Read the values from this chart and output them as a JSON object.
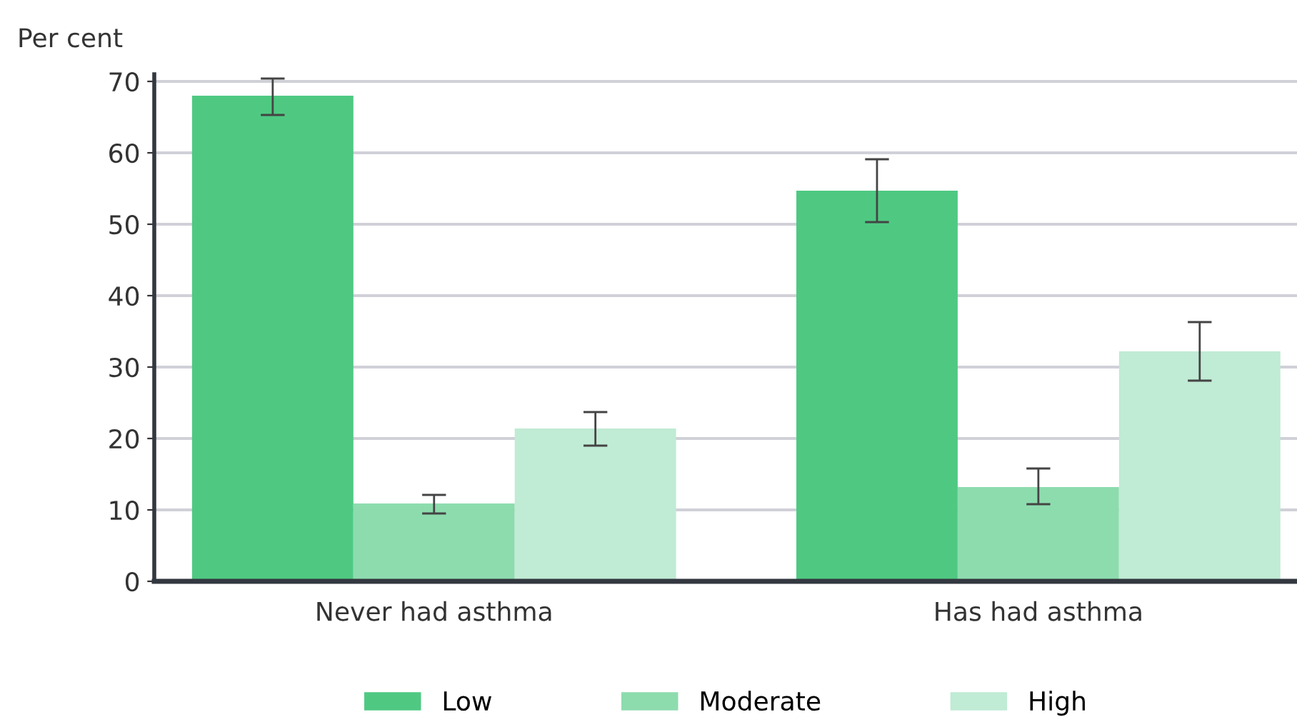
{
  "chart_data": {
    "type": "bar",
    "ylabel": "Per cent",
    "categories": [
      "Never had asthma",
      "Has had asthma"
    ],
    "series": [
      {
        "name": "Low",
        "color": "#4fc982",
        "values": [
          68,
          54.7
        ],
        "errors": [
          [
            65.3,
            70.4
          ],
          [
            50.3,
            59.1
          ]
        ]
      },
      {
        "name": "Moderate",
        "color": "#8ddcae",
        "values": [
          10.9,
          13.2
        ],
        "errors": [
          [
            9.5,
            12.1
          ],
          [
            10.8,
            15.8
          ]
        ]
      },
      {
        "name": "High",
        "color": "#c0ebd4",
        "values": [
          21.4,
          32.2
        ],
        "errors": [
          [
            19.0,
            23.7
          ],
          [
            28.1,
            36.3
          ]
        ]
      }
    ],
    "ylim": [
      0,
      71
    ],
    "yticks": [
      0,
      10,
      20,
      30,
      40,
      50,
      60,
      70
    ],
    "grid": "y",
    "legend": "bottom"
  }
}
